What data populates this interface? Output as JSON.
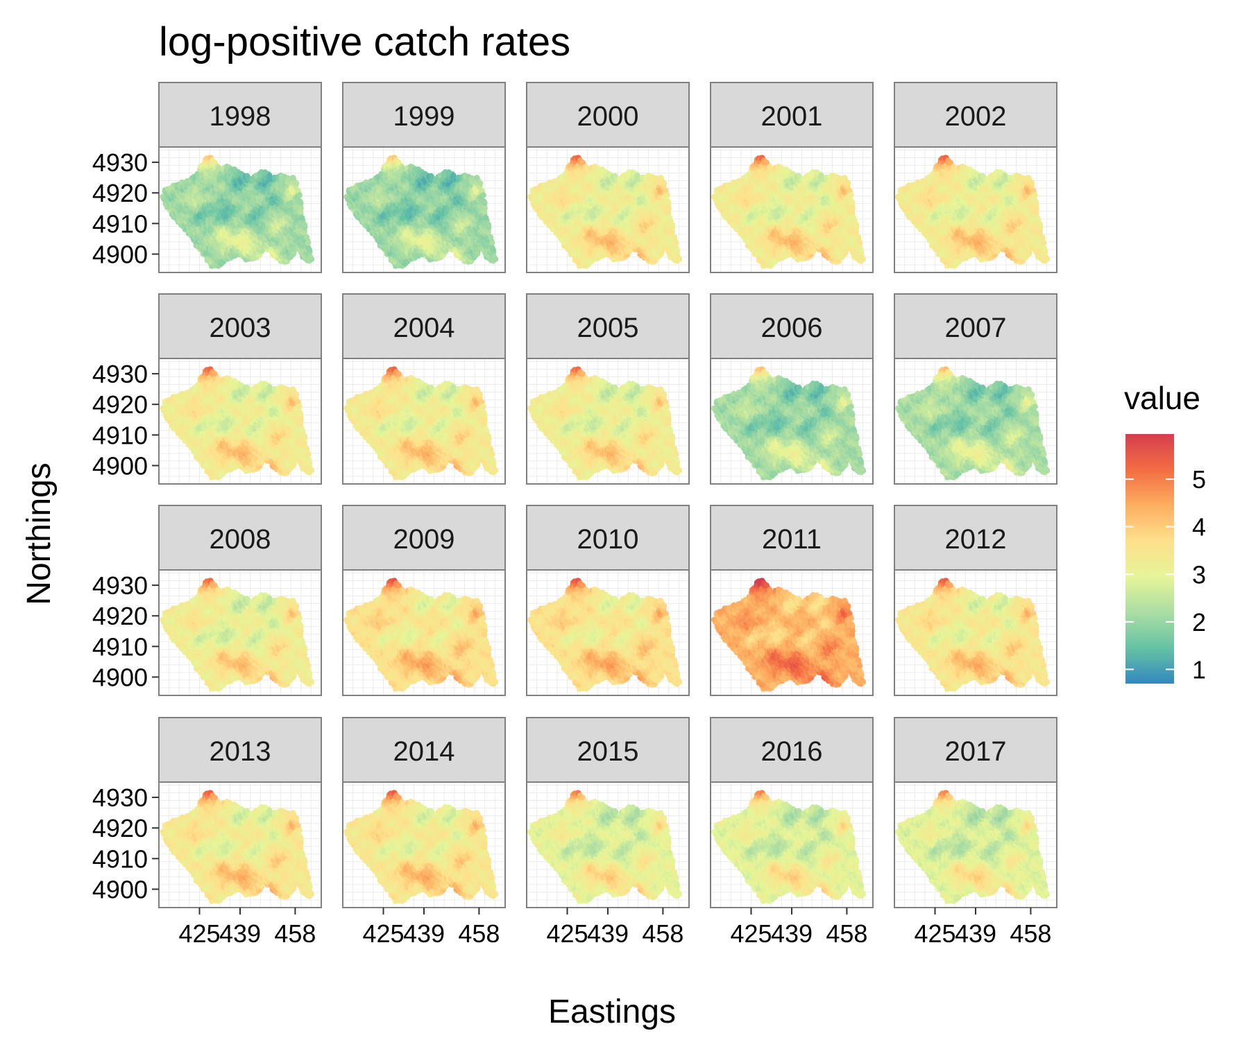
{
  "chart_data": {
    "type": "heatmap",
    "title": "log-positive catch rates",
    "xlabel": "Eastings",
    "ylabel": "Northings",
    "x_ticks": [
      "425",
      "439",
      "458"
    ],
    "x_tick_values": [
      425,
      439,
      458
    ],
    "y_ticks": [
      "4930",
      "4920",
      "4910",
      "4900"
    ],
    "y_tick_values": [
      4930,
      4920,
      4910,
      4900
    ],
    "xlim": [
      411,
      467
    ],
    "ylim": [
      4894,
      4935
    ],
    "legend": {
      "title": "value",
      "position": "right",
      "labels": [
        "5",
        "4",
        "3",
        "2",
        "1"
      ],
      "values": [
        5,
        4,
        3,
        2,
        1
      ],
      "range": [
        0.7,
        5.95
      ],
      "colors": [
        "#3288bd",
        "#66c2a5",
        "#abdda4",
        "#e6f598",
        "#fee08b",
        "#fdae61",
        "#f46d43",
        "#d53e4f"
      ]
    },
    "grid": true,
    "panels": [
      {
        "label": "1998",
        "mean_value": 2.1
      },
      {
        "label": "1999",
        "mean_value": 2.05
      },
      {
        "label": "2000",
        "mean_value": 3.3
      },
      {
        "label": "2001",
        "mean_value": 3.3
      },
      {
        "label": "2002",
        "mean_value": 3.35
      },
      {
        "label": "2003",
        "mean_value": 3.3
      },
      {
        "label": "2004",
        "mean_value": 3.35
      },
      {
        "label": "2005",
        "mean_value": 3.25
      },
      {
        "label": "2006",
        "mean_value": 2.15
      },
      {
        "label": "2007",
        "mean_value": 2.2
      },
      {
        "label": "2008",
        "mean_value": 3.25
      },
      {
        "label": "2009",
        "mean_value": 3.6
      },
      {
        "label": "2010",
        "mean_value": 3.6
      },
      {
        "label": "2011",
        "mean_value": 4.4
      },
      {
        "label": "2012",
        "mean_value": 3.45
      },
      {
        "label": "2013",
        "mean_value": 3.4
      },
      {
        "label": "2014",
        "mean_value": 3.45
      },
      {
        "label": "2015",
        "mean_value": 3.0
      },
      {
        "label": "2016",
        "mean_value": 2.95
      },
      {
        "label": "2017",
        "mean_value": 2.9
      }
    ]
  }
}
